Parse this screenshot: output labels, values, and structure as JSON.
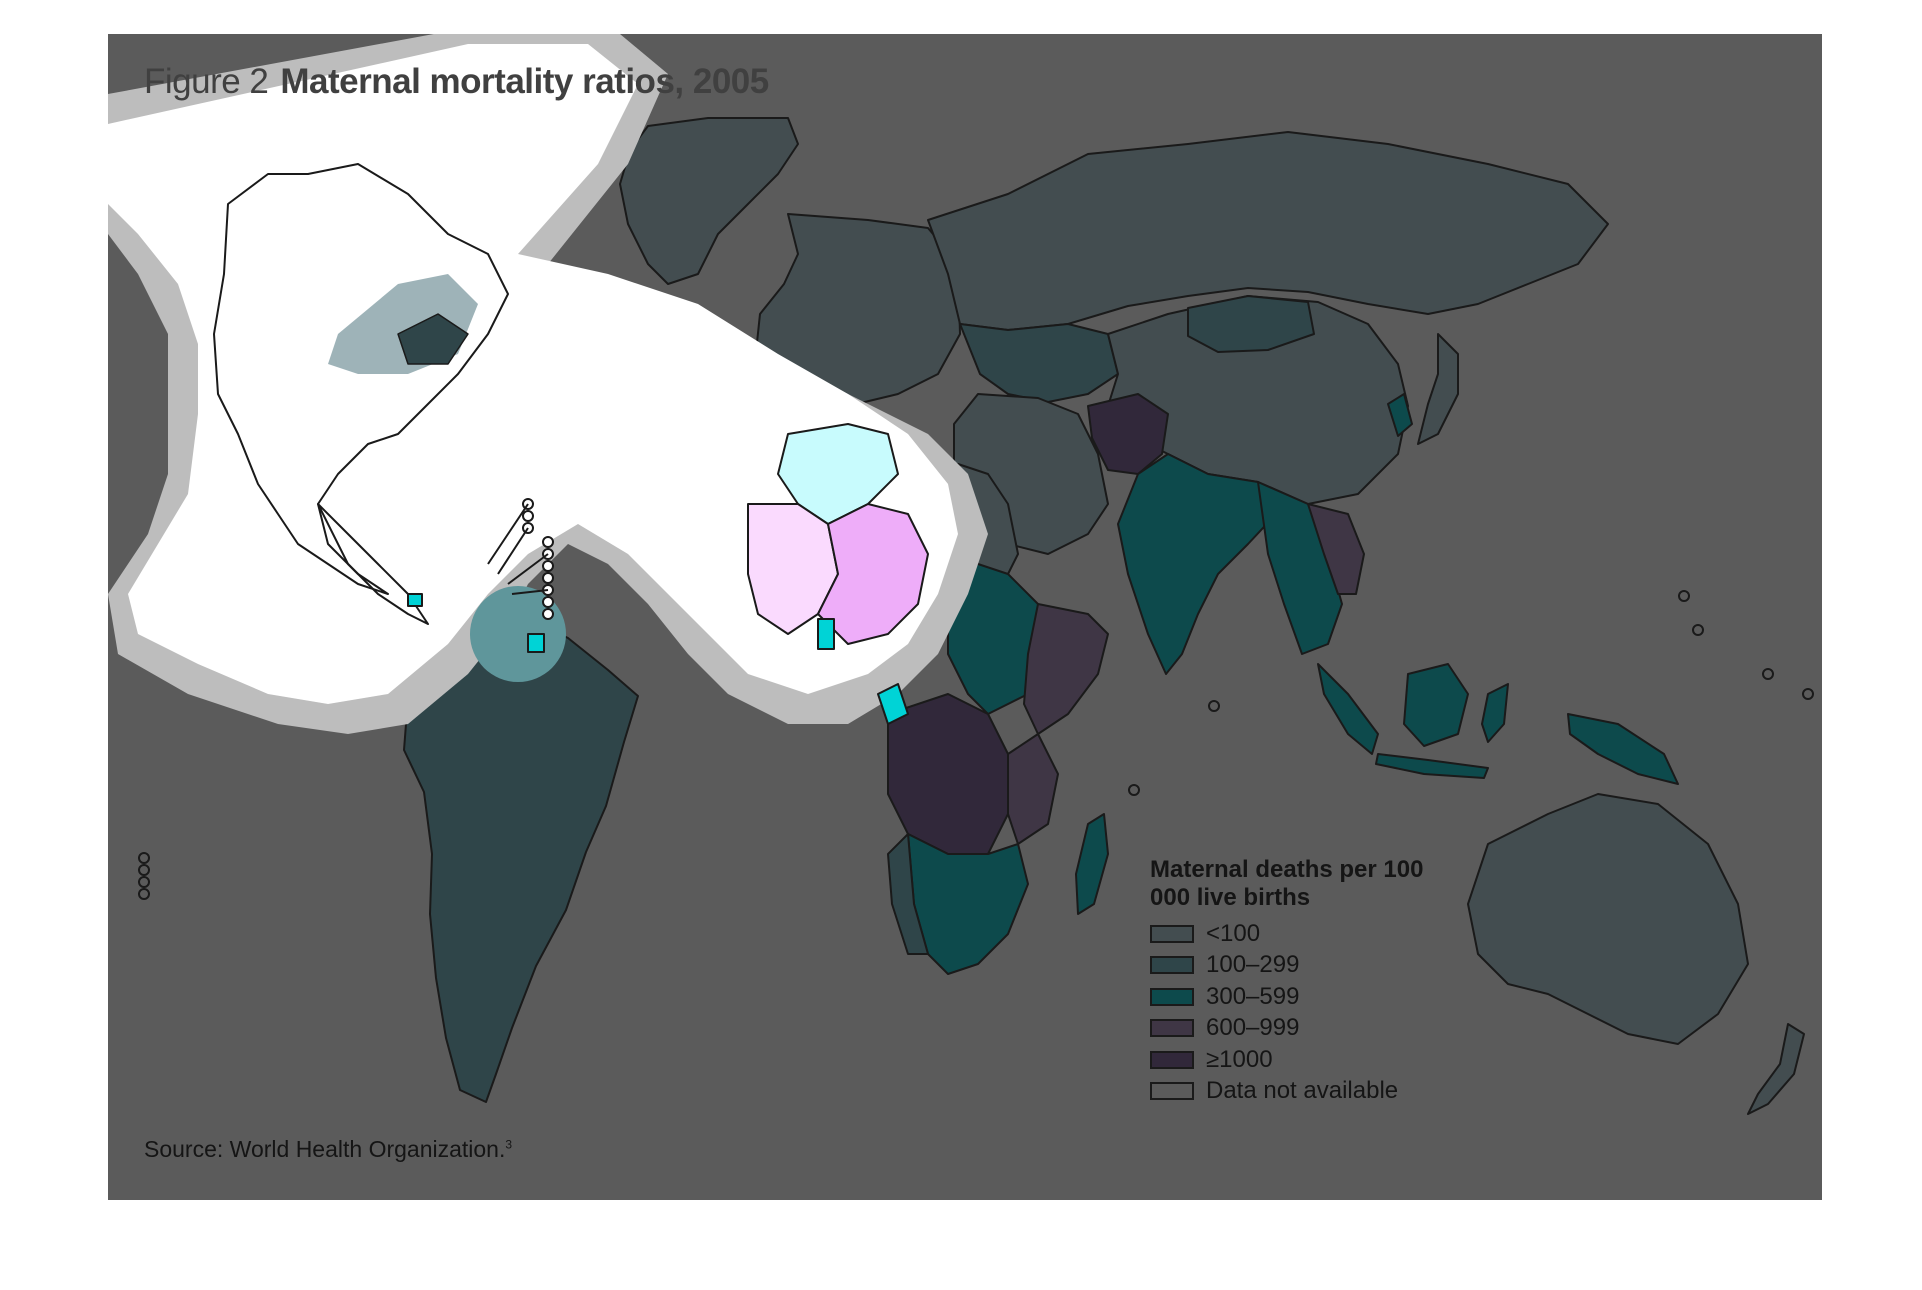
{
  "figure": {
    "label": "Figure 2",
    "title": "Maternal mortality ratios, 2005"
  },
  "legend": {
    "title": "Maternal deaths per 100 000 live births",
    "items": [
      {
        "label": "<100",
        "color": "#434d50"
      },
      {
        "label": "100–299",
        "color": "#2f4549"
      },
      {
        "label": "300–599",
        "color": "#0d4a4c"
      },
      {
        "label": "600–999",
        "color": "#3f3645"
      },
      {
        "label": "≥1000",
        "color": "#31283a"
      },
      {
        "label": "Data not available",
        "color": "#5b5b5b"
      }
    ]
  },
  "source": {
    "text": "Source: World Health Organization.",
    "ref": "3"
  },
  "colors": {
    "background": "#5b5b5b",
    "border": "#1a1a1a",
    "highlight_white": "#ffffff",
    "highlight_halo": "#bdbdbd",
    "highlight_teal": "#93abb0",
    "highlight_cyan": "#c8fbfd",
    "highlight_pink": "#fadafe",
    "highlight_magenta": "#eeadf9",
    "highlight_aqua": "#00d3d6"
  }
}
